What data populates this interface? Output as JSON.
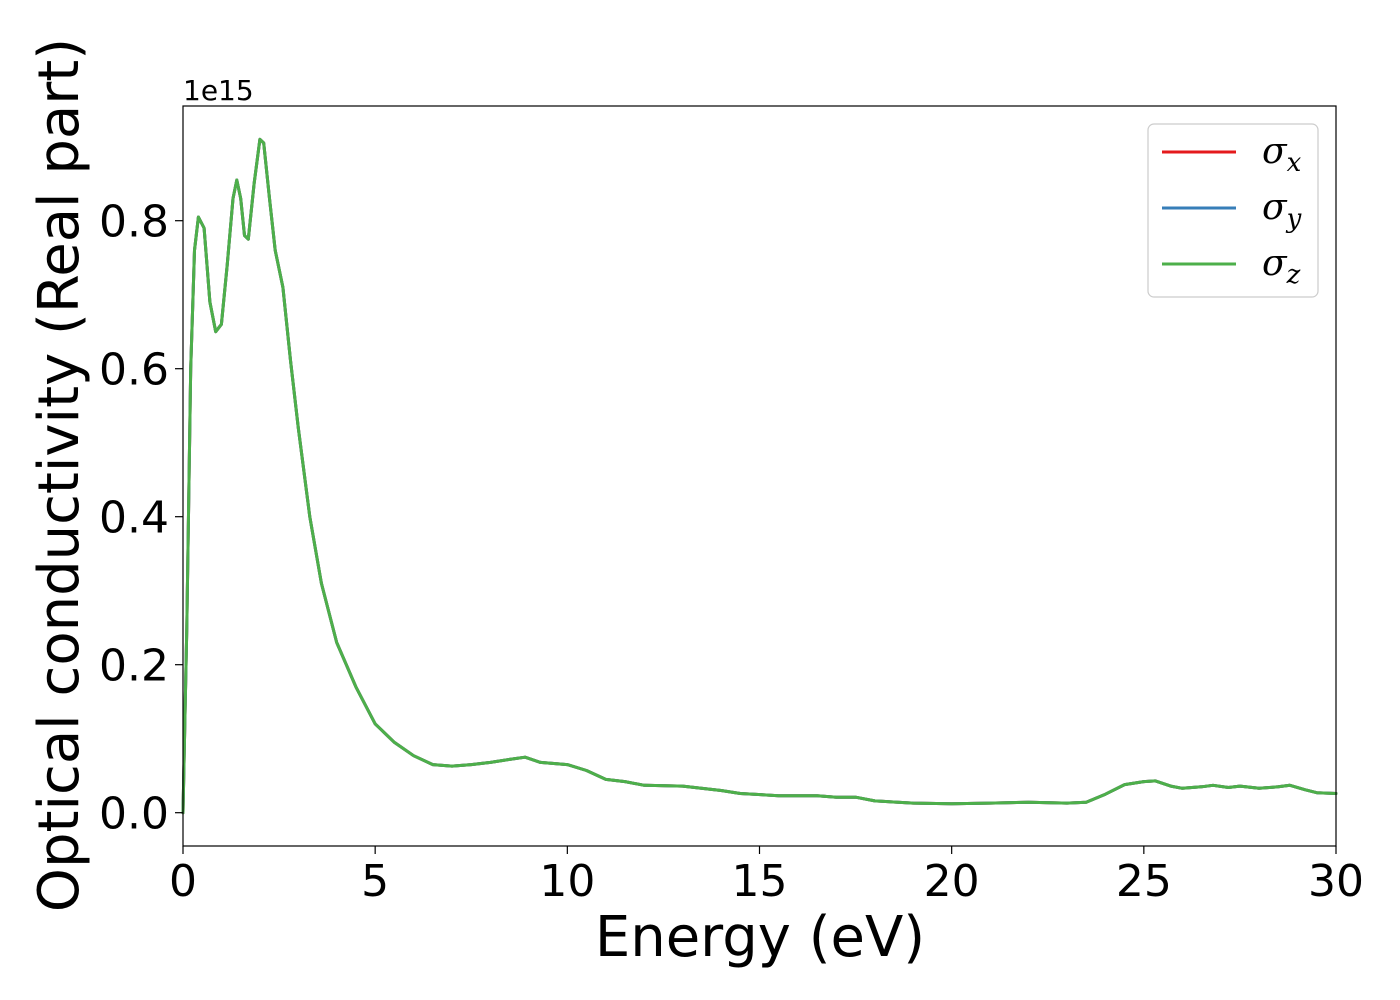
{
  "chart_data": {
    "type": "line",
    "xlabel": "Energy (eV)",
    "ylabel": "Optical conductivity (Real part)",
    "y_offset_label": "1e15",
    "xlim": [
      0,
      30
    ],
    "ylim": [
      -0.045,
      0.955
    ],
    "x_ticks": [
      0,
      5,
      10,
      15,
      20,
      25,
      30
    ],
    "x_tick_labels": [
      "0",
      "5",
      "10",
      "15",
      "20",
      "25",
      "30"
    ],
    "y_ticks": [
      0.0,
      0.2,
      0.4,
      0.6,
      0.8
    ],
    "y_tick_labels": [
      "0.0",
      "0.2",
      "0.4",
      "0.6",
      "0.8"
    ],
    "grid": false,
    "legend_position": "top-right",
    "series": [
      {
        "name": "σx",
        "base": "σ",
        "sub": "x",
        "color": "#e41a1c"
      },
      {
        "name": "σy",
        "base": "σ",
        "sub": "y",
        "color": "#377eb8"
      },
      {
        "name": "σz",
        "base": "σ",
        "sub": "z",
        "color": "#4daf4a"
      }
    ],
    "x": [
      0,
      0.1,
      0.2,
      0.3,
      0.4,
      0.55,
      0.7,
      0.85,
      1.0,
      1.15,
      1.3,
      1.4,
      1.5,
      1.6,
      1.7,
      1.85,
      2.0,
      2.1,
      2.25,
      2.4,
      2.6,
      2.8,
      3.0,
      3.3,
      3.6,
      4.0,
      4.5,
      5.0,
      5.5,
      6.0,
      6.5,
      7.0,
      7.5,
      8.0,
      8.5,
      8.9,
      9.3,
      10.0,
      10.5,
      11.0,
      11.5,
      12.0,
      13.0,
      14.0,
      14.5,
      15.5,
      16.5,
      17.0,
      17.5,
      18.0,
      19.0,
      20.0,
      21.0,
      22.0,
      23.0,
      23.5,
      24.0,
      24.5,
      25.0,
      25.3,
      25.7,
      26.0,
      26.5,
      26.8,
      27.2,
      27.5,
      28.0,
      28.5,
      28.8,
      29.2,
      29.5,
      30.0
    ],
    "y": [
      0.0,
      0.25,
      0.6,
      0.76,
      0.805,
      0.79,
      0.69,
      0.65,
      0.66,
      0.74,
      0.83,
      0.855,
      0.83,
      0.78,
      0.775,
      0.85,
      0.91,
      0.905,
      0.83,
      0.76,
      0.71,
      0.61,
      0.52,
      0.4,
      0.31,
      0.23,
      0.17,
      0.12,
      0.095,
      0.077,
      0.065,
      0.063,
      0.065,
      0.068,
      0.072,
      0.075,
      0.068,
      0.065,
      0.057,
      0.045,
      0.042,
      0.037,
      0.036,
      0.03,
      0.026,
      0.023,
      0.023,
      0.021,
      0.021,
      0.016,
      0.013,
      0.012,
      0.013,
      0.014,
      0.013,
      0.014,
      0.025,
      0.038,
      0.042,
      0.043,
      0.036,
      0.033,
      0.035,
      0.037,
      0.034,
      0.036,
      0.033,
      0.035,
      0.037,
      0.031,
      0.027,
      0.026
    ]
  }
}
